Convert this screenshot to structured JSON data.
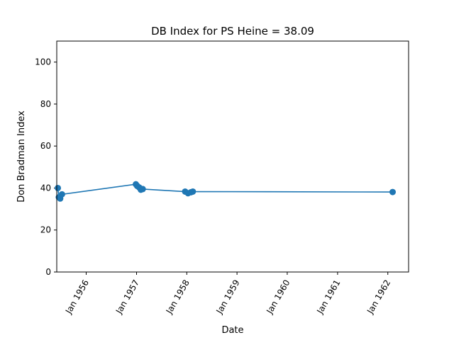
{
  "chart_data": {
    "type": "line",
    "title": "DB Index for PS Heine = 38.09",
    "xlabel": "Date",
    "ylabel": "Don Bradman Index",
    "ylim": [
      0,
      110
    ],
    "xlim": [
      "1955-06-01",
      "1962-06-01"
    ],
    "y_ticks": [
      0,
      20,
      40,
      60,
      80,
      100
    ],
    "x_ticks": [
      {
        "date": "1956-01-01",
        "label": "Jan 1956"
      },
      {
        "date": "1957-01-01",
        "label": "Jan 1957"
      },
      {
        "date": "1958-01-01",
        "label": "Jan 1958"
      },
      {
        "date": "1959-01-01",
        "label": "Jan 1959"
      },
      {
        "date": "1960-01-01",
        "label": "Jan 1960"
      },
      {
        "date": "1961-01-01",
        "label": "Jan 1961"
      },
      {
        "date": "1962-01-01",
        "label": "Jan 1962"
      }
    ],
    "grid": false,
    "series": [
      {
        "color": "#1f77b4",
        "marker": "circle",
        "points": [
          {
            "x": "1955-06-09",
            "y": 40.0
          },
          {
            "x": "1955-06-16",
            "y": 35.6
          },
          {
            "x": "1955-06-26",
            "y": 35.0
          },
          {
            "x": "1955-07-09",
            "y": 37.0
          },
          {
            "x": "1956-12-27",
            "y": 41.8
          },
          {
            "x": "1957-01-05",
            "y": 41.0
          },
          {
            "x": "1957-01-20",
            "y": 40.3
          },
          {
            "x": "1957-02-01",
            "y": 39.2
          },
          {
            "x": "1957-02-15",
            "y": 39.5
          },
          {
            "x": "1957-12-20",
            "y": 38.3
          },
          {
            "x": "1958-01-10",
            "y": 37.5
          },
          {
            "x": "1958-01-31",
            "y": 38.0
          },
          {
            "x": "1958-02-14",
            "y": 38.3
          },
          {
            "x": "1962-02-05",
            "y": 38.09
          }
        ]
      }
    ]
  }
}
